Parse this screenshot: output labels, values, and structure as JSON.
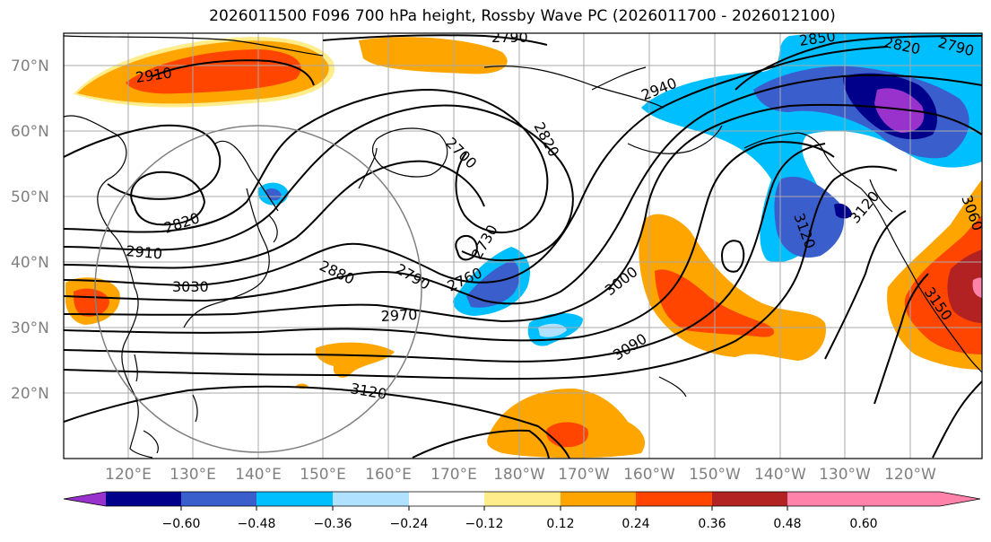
{
  "title": "2026011500 F096 700 hPa height, Rossby Wave PC (2026011700 - 2026012100)",
  "lat_labels": [
    "70°N",
    "60°N",
    "50°N",
    "40°N",
    "30°N",
    "20°N"
  ],
  "lon_labels": [
    "120°E",
    "130°E",
    "140°E",
    "150°E",
    "160°E",
    "170°E",
    "180°W",
    "170°W",
    "160°W",
    "150°W",
    "140°W",
    "130°W",
    "120°W"
  ],
  "contour_labels": [
    "2910",
    "2790",
    "2850",
    "2820",
    "2790",
    "2940",
    "2700",
    "2820",
    "2820",
    "3120",
    "3120",
    "3060",
    "2910",
    "3030",
    "2880",
    "2790",
    "2760",
    "2730",
    "3000",
    "2970",
    "3090",
    "3150",
    "3120"
  ],
  "colorbar": {
    "ticks": [
      "−0.60",
      "−0.48",
      "−0.36",
      "−0.24",
      "−0.12",
      "0.12",
      "0.24",
      "0.36",
      "0.48",
      "0.60"
    ],
    "colors": [
      "#9932cc",
      "#00008b",
      "#3a5fcd",
      "#00bfff",
      "#b0e2ff",
      "#ffffff",
      "#ffec8b",
      "#ffa500",
      "#ff4500",
      "#b22222",
      "#ff82ab"
    ]
  }
}
